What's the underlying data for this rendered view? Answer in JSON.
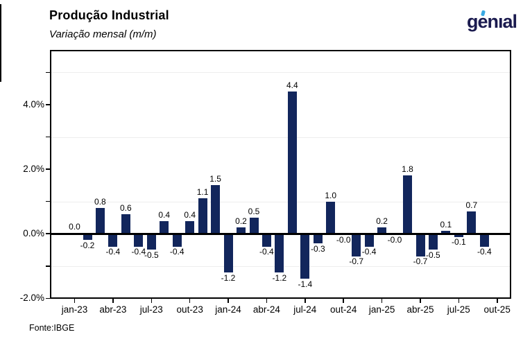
{
  "header": {
    "title": "Produção Industrial",
    "subtitle": "Variação mensal (m/m)",
    "logo_text": "genıal"
  },
  "footer": {
    "source": "Fonte:IBGE"
  },
  "colors": {
    "bar": "#12265c",
    "logo_navy": "#1b1b4f",
    "logo_accent": "#39a9e3",
    "gridline": "#ededed",
    "axis": "#000000"
  },
  "chart_data": {
    "type": "bar",
    "title": "Produção Industrial",
    "subtitle": "Variação mensal (m/m)",
    "source": "Fonte:IBGE",
    "unit": "%",
    "legend": "none",
    "grid": "light-horizontal",
    "bar_color": "#12265c",
    "categories": [
      "jan-23",
      "fev-23",
      "mar-23",
      "abr-23",
      "mai-23",
      "jun-23",
      "jul-23",
      "ago-23",
      "set-23",
      "out-23",
      "nov-23",
      "dez-23",
      "jan-24",
      "fev-24",
      "mar-24",
      "abr-24",
      "mai-24",
      "jun-24",
      "jul-24",
      "ago-24",
      "set-24",
      "out-24",
      "nov-24",
      "dez-24",
      "jan-25",
      "fev-25",
      "mar-25",
      "abr-25",
      "mai-25",
      "jun-25",
      "jul-25",
      "ago-25",
      "set-25"
    ],
    "values": [
      0.0,
      -0.2,
      0.8,
      -0.4,
      0.6,
      -0.4,
      -0.5,
      0.4,
      -0.4,
      0.4,
      1.1,
      1.5,
      -1.2,
      0.2,
      0.5,
      -0.4,
      -1.2,
      4.4,
      -1.4,
      -0.3,
      1.0,
      -0.0,
      -0.7,
      -0.4,
      0.2,
      -0.0,
      1.8,
      -0.7,
      -0.5,
      0.1,
      -0.1,
      0.7,
      -0.4
    ],
    "point_labels": [
      "0.0",
      "-0.2",
      "0.8",
      "-0.4",
      "0.6",
      "-0.4",
      "-0.5",
      "0.4",
      "-0.4",
      "0.4",
      "1.1",
      "1.5",
      "-1.2",
      "0.2",
      "0.5",
      "-0.4",
      "-1.2",
      "4.4",
      "-1.4",
      "-0.3",
      "1.0",
      "-0.0",
      "-0.7",
      "-0.4",
      "0.2",
      "-0.0",
      "1.8",
      "-0.7",
      "-0.5",
      "0.1",
      "-0.1",
      "0.7",
      "-0.4"
    ],
    "x_tick_labels": [
      "jan-23",
      "abr-23",
      "jul-23",
      "out-23",
      "jan-24",
      "abr-24",
      "jul-24",
      "out-24",
      "jan-25",
      "abr-25",
      "jul-25",
      "out-25"
    ],
    "y_ticks": [
      {
        "v": 4,
        "label": "4.0%"
      },
      {
        "v": 2,
        "label": "2.0%"
      },
      {
        "v": 0,
        "label": "0.0%"
      },
      {
        "v": -2,
        "label": "-2.0%"
      }
    ],
    "y_minor_ticks": [
      5,
      4,
      3,
      2,
      1,
      0,
      -1,
      -2
    ],
    "y_gridlines": [
      5,
      3,
      1,
      -1
    ],
    "ylim": [
      -2.0,
      5.7
    ]
  }
}
